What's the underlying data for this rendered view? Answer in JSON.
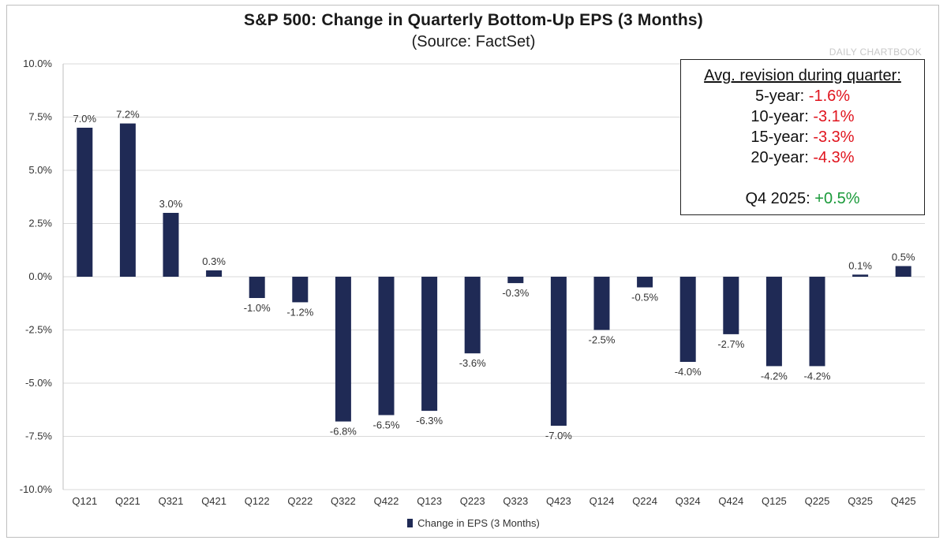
{
  "title": "S&P 500: Change in Quarterly Bottom-Up EPS (3 Months)",
  "subtitle": "(Source: FactSet)",
  "watermark": "DAILY CHARTBOOK",
  "colors": {
    "bar": "#1f2a55",
    "negative_text": "#e0141e",
    "positive_text": "#1a9a3a",
    "gridline": "#d9d9d9"
  },
  "infobox": {
    "header": "Avg. revision during quarter:",
    "rows": [
      {
        "label": "5-year: ",
        "value": "-1.6%"
      },
      {
        "label": "10-year: ",
        "value": "-3.1%"
      },
      {
        "label": "15-year: ",
        "value": "-3.3%"
      },
      {
        "label": "20-year: ",
        "value": "-4.3%"
      }
    ],
    "highlight": {
      "label": "Q4 2025: ",
      "value": "+0.5%"
    }
  },
  "chart_data": {
    "type": "bar",
    "categories": [
      "Q121",
      "Q221",
      "Q321",
      "Q421",
      "Q122",
      "Q222",
      "Q322",
      "Q422",
      "Q123",
      "Q223",
      "Q323",
      "Q423",
      "Q124",
      "Q224",
      "Q324",
      "Q424",
      "Q125",
      "Q225",
      "Q325",
      "Q425"
    ],
    "series": [
      {
        "name": "Change in EPS (3 Months)",
        "values": [
          7.0,
          7.2,
          3.0,
          0.3,
          -1.0,
          -1.2,
          -6.8,
          -6.5,
          -6.3,
          -3.6,
          -0.3,
          -7.0,
          -2.5,
          -0.5,
          -4.0,
          -2.7,
          -4.2,
          -4.2,
          0.1,
          0.5
        ],
        "labels": [
          "7.0%",
          "7.2%",
          "3.0%",
          "0.3%",
          "-1.0%",
          "-1.2%",
          "-6.8%",
          "-6.5%",
          "-6.3%",
          "-3.6%",
          "-0.3%",
          "-7.0%",
          "-2.5%",
          "-0.5%",
          "-4.0%",
          "-2.7%",
          "-4.2%",
          "-4.2%",
          "0.1%",
          "0.5%"
        ]
      }
    ],
    "yticks": [
      10.0,
      7.5,
      5.0,
      2.5,
      0.0,
      -2.5,
      -5.0,
      -7.5,
      -10.0
    ],
    "ytick_labels": [
      "10.0%",
      "7.5%",
      "5.0%",
      "2.5%",
      "0.0%",
      "-2.5%",
      "-5.0%",
      "-7.5%",
      "-10.0%"
    ],
    "ylim": [
      -10,
      10
    ],
    "grid": true,
    "legend": "bottom-center"
  }
}
